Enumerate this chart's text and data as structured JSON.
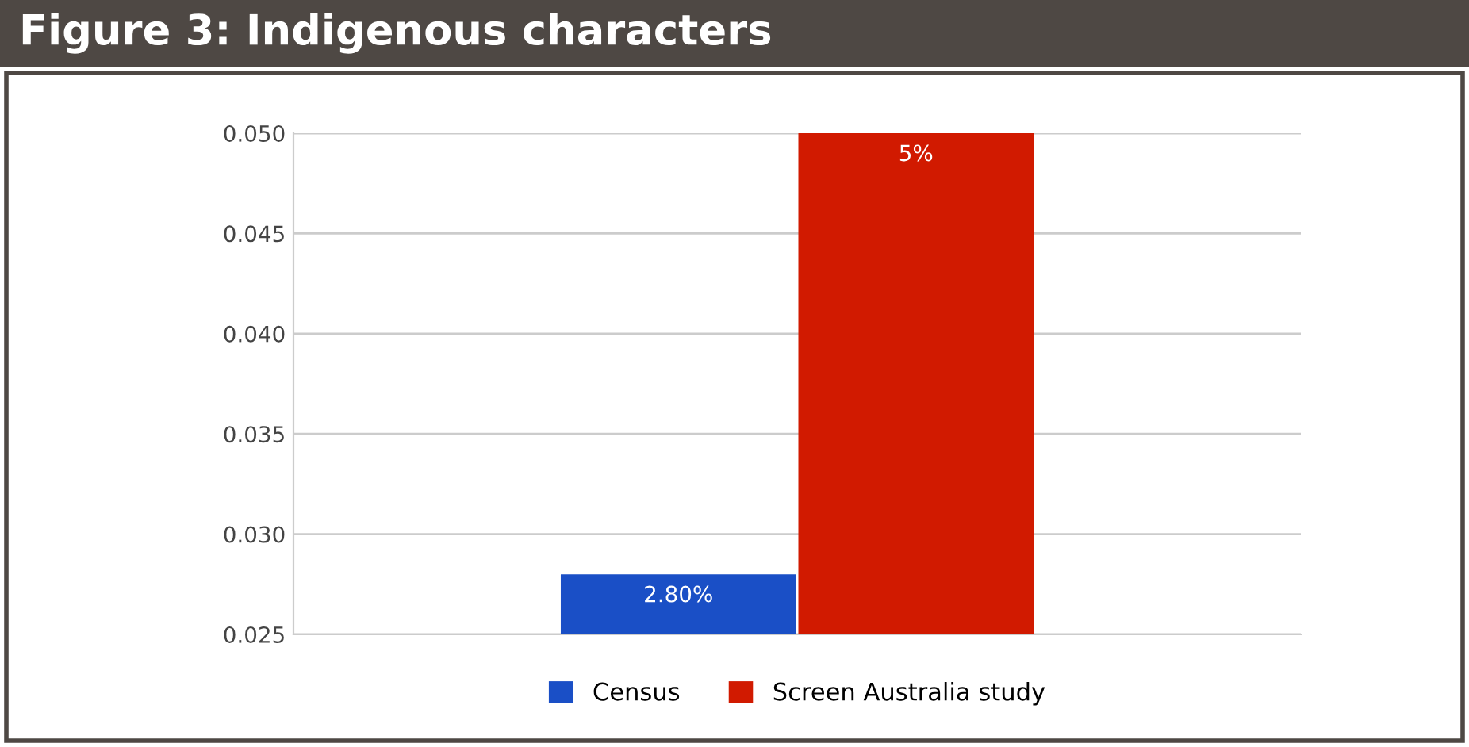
{
  "chart_data": {
    "type": "bar",
    "title": "Figure 3: Indigenous characters",
    "categories": [
      null
    ],
    "series": [
      {
        "name": "Census",
        "color": "#1a4fc6",
        "values": [
          0.028
        ],
        "value_labels": [
          "2.80%"
        ]
      },
      {
        "name": "Screen Australia study",
        "color": "#d11a00",
        "values": [
          0.05
        ],
        "value_labels": [
          "5%"
        ]
      }
    ],
    "ylim": [
      0.025,
      0.05
    ],
    "yticks": [
      {
        "value": 0.025,
        "label": "0.025"
      },
      {
        "value": 0.03,
        "label": "0.030"
      },
      {
        "value": 0.035,
        "label": "0.035"
      },
      {
        "value": 0.04,
        "label": "0.040"
      },
      {
        "value": 0.045,
        "label": "0.045"
      },
      {
        "value": 0.05,
        "label": "0.050"
      }
    ],
    "grid": "y",
    "legend": "bottom"
  }
}
